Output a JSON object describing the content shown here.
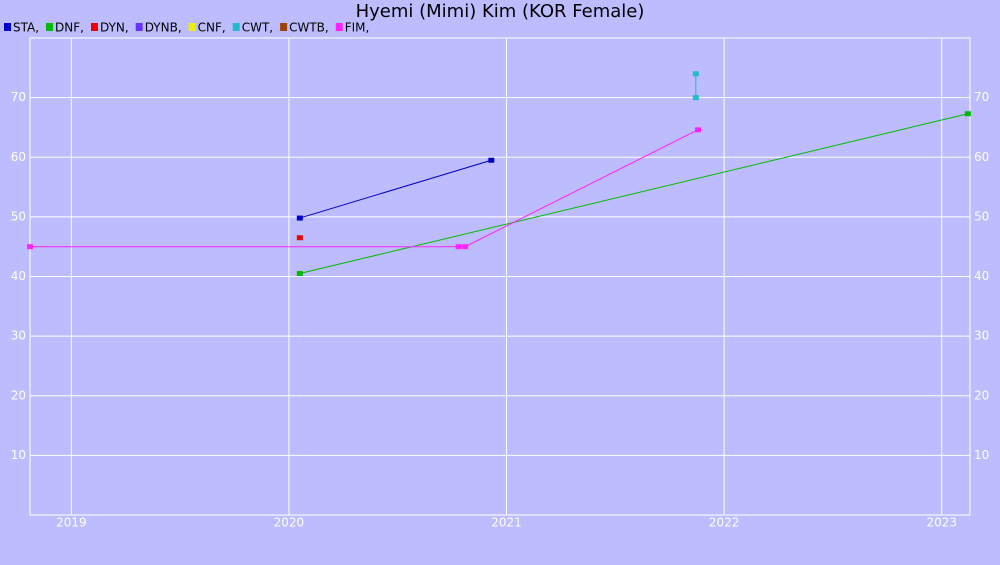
{
  "chart_data": {
    "type": "line",
    "title": "Hyemi (Mimi) Kim (KOR Female)",
    "xlim": [
      2018.81,
      2023.13
    ],
    "xticks": [
      2019,
      2020,
      2021,
      2022,
      2023
    ],
    "ylim": [
      0,
      80
    ],
    "yticks": [
      10,
      20,
      30,
      40,
      50,
      60,
      70
    ],
    "grid": true,
    "series": [
      {
        "name": "STA,",
        "color": "#0000cc",
        "x": [
          2020.05,
          2020.93
        ],
        "values": [
          49.8,
          59.5
        ]
      },
      {
        "name": "DNF,",
        "color": "#00bb00",
        "x": [
          2020.05,
          2023.12
        ],
        "values": [
          40.5,
          67.3
        ]
      },
      {
        "name": "DYN,",
        "color": "#ee0000",
        "x": [
          2020.05
        ],
        "values": [
          46.5
        ]
      },
      {
        "name": "DYNB,",
        "color": "#6633ff",
        "x": [],
        "values": []
      },
      {
        "name": "CNF,",
        "color": "#eeee00",
        "x": [],
        "values": []
      },
      {
        "name": "CWT,",
        "color": "#22bbcc",
        "x": [
          2021.87,
          2021.87
        ],
        "values": [
          70,
          74
        ]
      },
      {
        "name": "CWTB,",
        "color": "#994400",
        "x": [],
        "values": []
      },
      {
        "name": "FIM,",
        "color": "#ff22ff",
        "x": [
          2018.81,
          2020.78,
          2020.81,
          2021.88
        ],
        "values": [
          45,
          45,
          45,
          64.6
        ]
      }
    ]
  }
}
